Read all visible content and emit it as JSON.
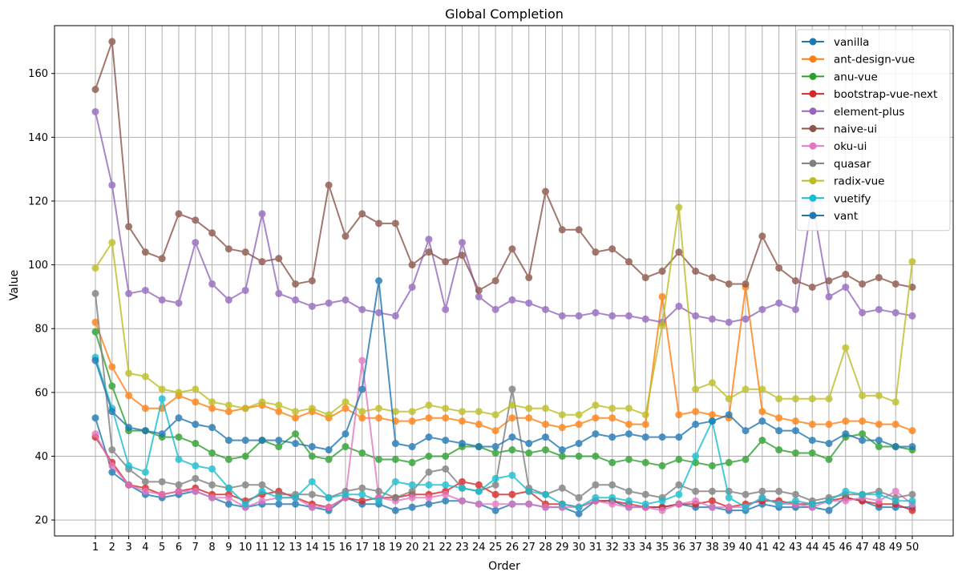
{
  "chart_data": {
    "type": "line",
    "title": "Global Completion",
    "xlabel": "Order",
    "ylabel": "Value",
    "ylim": [
      15,
      175
    ],
    "yticks": [
      20,
      40,
      60,
      80,
      100,
      120,
      140,
      160
    ],
    "grid": true,
    "legend_position": "top-right",
    "x": [
      1,
      2,
      3,
      4,
      5,
      6,
      7,
      8,
      9,
      10,
      11,
      12,
      13,
      14,
      15,
      16,
      17,
      18,
      19,
      20,
      21,
      22,
      23,
      24,
      25,
      26,
      27,
      28,
      29,
      30,
      31,
      32,
      33,
      34,
      35,
      36,
      37,
      38,
      39,
      40,
      41,
      42,
      43,
      44,
      45,
      46,
      47,
      48,
      49,
      50
    ],
    "series": [
      {
        "name": "vanilla",
        "color": "#1f77b4",
        "values": [
          52,
          35,
          31,
          28,
          27,
          28,
          29,
          27,
          25,
          24,
          25,
          25,
          25,
          24,
          23,
          27,
          25,
          25,
          23,
          24,
          25,
          26,
          26,
          25,
          23,
          25,
          25,
          24,
          24,
          22,
          26,
          26,
          24,
          24,
          24,
          25,
          24,
          24,
          23,
          23,
          25,
          24,
          24,
          24,
          23,
          27,
          26,
          24,
          24,
          24
        ]
      },
      {
        "name": "ant-design-vue",
        "color": "#ff7f0e",
        "values": [
          82,
          68,
          59,
          55,
          55,
          59,
          57,
          55,
          54,
          55,
          56,
          54,
          52,
          54,
          52,
          55,
          52,
          52,
          51,
          51,
          52,
          52,
          51,
          50,
          48,
          52,
          52,
          50,
          49,
          50,
          52,
          52,
          50,
          50,
          90,
          53,
          54,
          53,
          52,
          93,
          54,
          52,
          51,
          50,
          50,
          51,
          51,
          50,
          50,
          48
        ]
      },
      {
        "name": "anu-vue",
        "color": "#2ca02c",
        "values": [
          79,
          62,
          48,
          48,
          46,
          46,
          44,
          41,
          39,
          40,
          45,
          43,
          47,
          40,
          39,
          43,
          41,
          39,
          39,
          38,
          40,
          40,
          43,
          43,
          41,
          42,
          41,
          42,
          40,
          40,
          40,
          38,
          39,
          38,
          37,
          39,
          38,
          37,
          38,
          39,
          45,
          42,
          41,
          41,
          39,
          46,
          47,
          43,
          43,
          42
        ]
      },
      {
        "name": "bootstrap-vue-next",
        "color": "#d62728",
        "values": [
          46,
          38,
          31,
          30,
          28,
          29,
          30,
          28,
          28,
          26,
          28,
          29,
          27,
          25,
          24,
          27,
          26,
          27,
          27,
          28,
          28,
          29,
          32,
          31,
          28,
          28,
          29,
          25,
          25,
          24,
          26,
          26,
          25,
          24,
          24,
          25,
          25,
          26,
          24,
          25,
          26,
          26,
          25,
          25,
          26,
          27,
          26,
          25,
          25,
          23
        ]
      },
      {
        "name": "element-plus",
        "color": "#9467bd",
        "values": [
          148,
          125,
          91,
          92,
          89,
          88,
          107,
          94,
          89,
          92,
          116,
          91,
          89,
          87,
          88,
          89,
          86,
          85,
          84,
          93,
          108,
          86,
          107,
          90,
          86,
          89,
          88,
          86,
          84,
          84,
          85,
          84,
          84,
          83,
          82,
          87,
          84,
          83,
          82,
          83,
          86,
          88,
          86,
          120,
          90,
          93,
          85,
          86,
          85,
          84
        ]
      },
      {
        "name": "naive-ui",
        "color": "#8c564b",
        "values": [
          155,
          170,
          112,
          104,
          102,
          116,
          114,
          110,
          105,
          104,
          101,
          102,
          94,
          95,
          125,
          109,
          116,
          113,
          113,
          100,
          104,
          101,
          103,
          92,
          95,
          105,
          96,
          123,
          111,
          111,
          104,
          105,
          101,
          96,
          98,
          104,
          98,
          96,
          94,
          94,
          109,
          99,
          95,
          93,
          95,
          97,
          94,
          96,
          94,
          93
        ]
      },
      {
        "name": "oku-ui",
        "color": "#e377c2",
        "values": [
          47,
          37,
          31,
          29,
          28,
          29,
          29,
          27,
          27,
          24,
          26,
          27,
          27,
          24,
          24,
          27,
          70,
          27,
          26,
          27,
          27,
          28,
          26,
          25,
          25,
          25,
          25,
          24,
          24,
          24,
          26,
          25,
          24,
          24,
          23,
          25,
          26,
          24,
          24,
          24,
          27,
          25,
          25,
          24,
          26,
          26,
          27,
          26,
          29,
          25
        ]
      },
      {
        "name": "quasar",
        "color": "#7f7f7f",
        "values": [
          91,
          42,
          36,
          32,
          32,
          31,
          33,
          31,
          30,
          31,
          31,
          28,
          28,
          28,
          27,
          29,
          30,
          29,
          27,
          29,
          35,
          36,
          30,
          29,
          31,
          61,
          30,
          28,
          30,
          27,
          31,
          31,
          29,
          28,
          27,
          31,
          29,
          29,
          29,
          28,
          29,
          29,
          28,
          26,
          27,
          28,
          28,
          29,
          27,
          28
        ]
      },
      {
        "name": "radix-vue",
        "color": "#bcbd22",
        "values": [
          99,
          107,
          66,
          65,
          61,
          60,
          61,
          57,
          56,
          55,
          57,
          56,
          54,
          55,
          53,
          57,
          54,
          55,
          54,
          54,
          56,
          55,
          54,
          54,
          53,
          56,
          55,
          55,
          53,
          53,
          56,
          55,
          55,
          53,
          81,
          118,
          61,
          63,
          58,
          61,
          61,
          58,
          58,
          58,
          58,
          74,
          59,
          59,
          57,
          101
        ]
      },
      {
        "name": "vuetify",
        "color": "#17becf",
        "values": [
          71,
          55,
          37,
          35,
          58,
          39,
          37,
          36,
          30,
          25,
          29,
          27,
          27,
          32,
          27,
          28,
          28,
          26,
          32,
          31,
          31,
          31,
          30,
          29,
          33,
          34,
          29,
          28,
          25,
          24,
          27,
          27,
          26,
          25,
          26,
          28,
          40,
          51,
          27,
          24,
          27,
          25,
          26,
          25,
          26,
          29,
          28,
          28,
          26,
          26
        ]
      },
      {
        "name": "vant",
        "color": "#1f77b4",
        "values": [
          70,
          54,
          49,
          48,
          47,
          52,
          50,
          49,
          45,
          45,
          45,
          45,
          44,
          43,
          42,
          47,
          61,
          95,
          44,
          43,
          46,
          45,
          44,
          43,
          43,
          46,
          44,
          46,
          42,
          44,
          47,
          46,
          47,
          46,
          46,
          46,
          50,
          51,
          53,
          48,
          51,
          48,
          48,
          45,
          44,
          47,
          45,
          45,
          43,
          43
        ]
      }
    ]
  }
}
